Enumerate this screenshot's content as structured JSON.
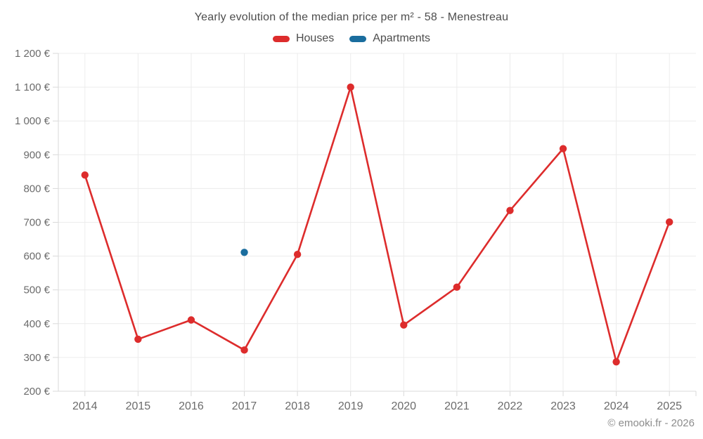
{
  "footer": "© emooki.fr - 2026",
  "colors": {
    "houses": "#dd2c2c",
    "apartments": "#1a6d9e",
    "grid": "#ececec",
    "axis": "#d9d9d9",
    "axis_text": "#6b6b6b",
    "title_text": "#4d4d4d",
    "footer_text": "#8c8c8c"
  },
  "chart_data": {
    "type": "line",
    "title": "Yearly evolution of the median price per m² - 58 - Menestreau",
    "categories": [
      "2014",
      "2015",
      "2016",
      "2017",
      "2018",
      "2019",
      "2020",
      "2021",
      "2022",
      "2023",
      "2024",
      "2025"
    ],
    "series": [
      {
        "name": "Houses",
        "color": "#dd2c2c",
        "values": [
          840,
          354,
          411,
          322,
          605,
          1100,
          396,
          508,
          735,
          918,
          287,
          701
        ]
      },
      {
        "name": "Apartments",
        "color": "#1a6d9e",
        "values": [
          null,
          null,
          null,
          611,
          null,
          null,
          null,
          null,
          null,
          null,
          null,
          null
        ]
      }
    ],
    "ylim": [
      200,
      1200
    ],
    "ytick_step": 100,
    "ytick_suffix": "€",
    "ytick_labels": [
      "200 €",
      "300 €",
      "400 €",
      "500 €",
      "600 €",
      "700 €",
      "800 €",
      "900 €",
      "1 000 €",
      "1 100 €",
      "1 200 €"
    ],
    "grid": true,
    "legend_position": "top",
    "marker": "circle"
  }
}
